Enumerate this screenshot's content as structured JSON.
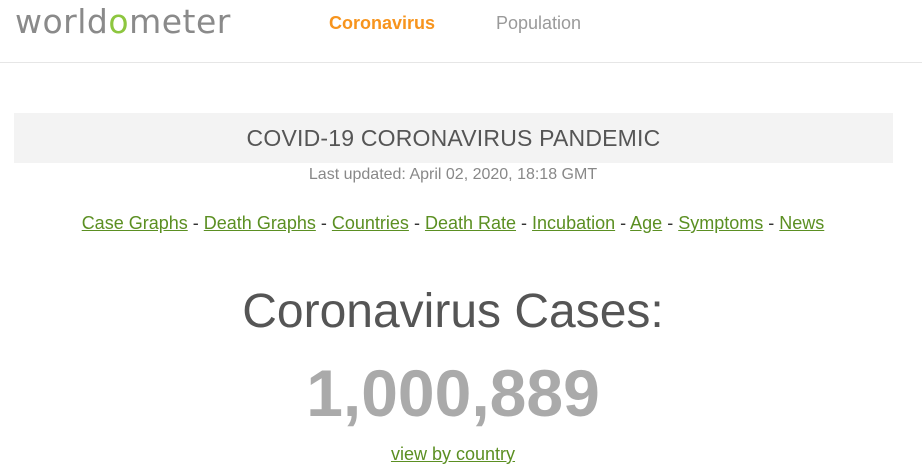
{
  "header": {
    "logo_prefix": "world",
    "logo_accent": "o",
    "logo_suffix": "meter",
    "nav": {
      "coronavirus": "Coronavirus",
      "population": "Population"
    },
    "colors": {
      "accent_orange": "#f7941d",
      "logo_green": "#8dc63f"
    }
  },
  "banner": {
    "title": "COVID-19 CORONAVIRUS PANDEMIC"
  },
  "last_updated": "Last updated: April 02, 2020, 18:18 GMT",
  "links": [
    "Case Graphs",
    "Death Graphs",
    "Countries",
    "Death Rate",
    "Incubation",
    "Age",
    "Symptoms",
    "News"
  ],
  "link_separator": "-",
  "cases": {
    "heading": "Coronavirus Cases:",
    "count": "1,000,889",
    "view_link": "view by country"
  }
}
